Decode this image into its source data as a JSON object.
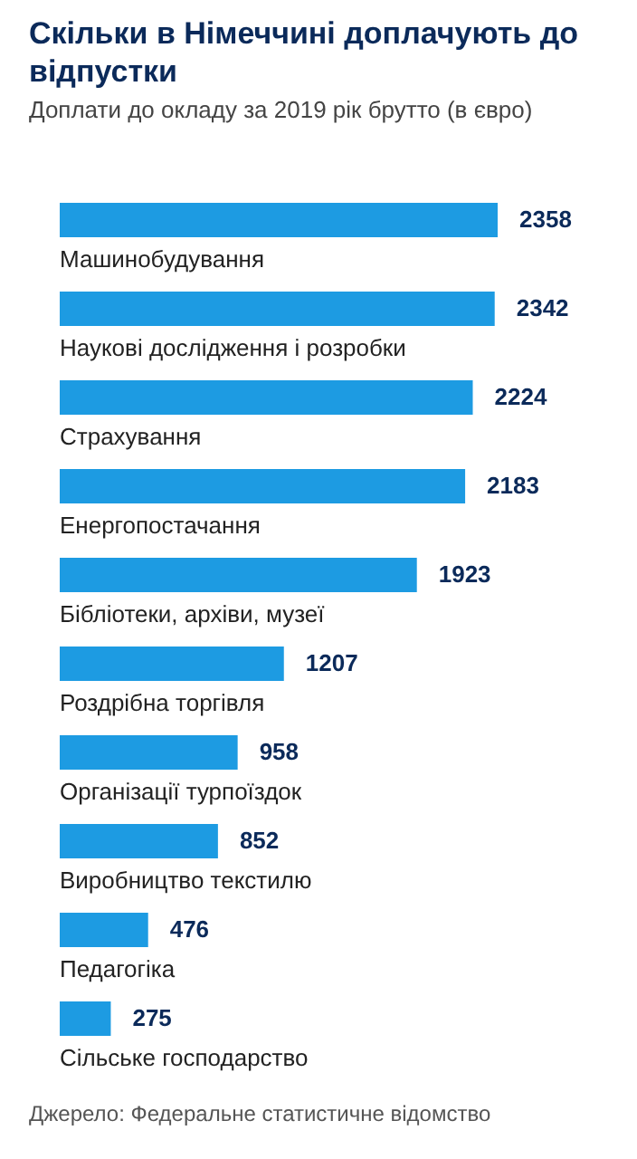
{
  "chart_data": {
    "type": "bar",
    "orientation": "horizontal",
    "title": "Скільки в Німеччині доплачують до відпустки",
    "subtitle": "Доплати до окладу за 2019 рік брутто (в євро)",
    "categories": [
      "Машинобудування",
      "Наукові дослідження і розробки",
      "Страхування",
      "Енергопостачання",
      "Бібліотеки, архіви, музеї",
      "Роздрібна торгівля",
      "Організації турпоїздок",
      "Виробництво текстилю",
      "Педагогіка",
      "Сільське господарство"
    ],
    "values": [
      2358,
      2342,
      2224,
      2183,
      1923,
      1207,
      958,
      852,
      476,
      275
    ],
    "color": "#1d9be2",
    "data_labels": true,
    "annotations": [
      "Джерело: Федеральне статистичне відомство"
    ]
  }
}
